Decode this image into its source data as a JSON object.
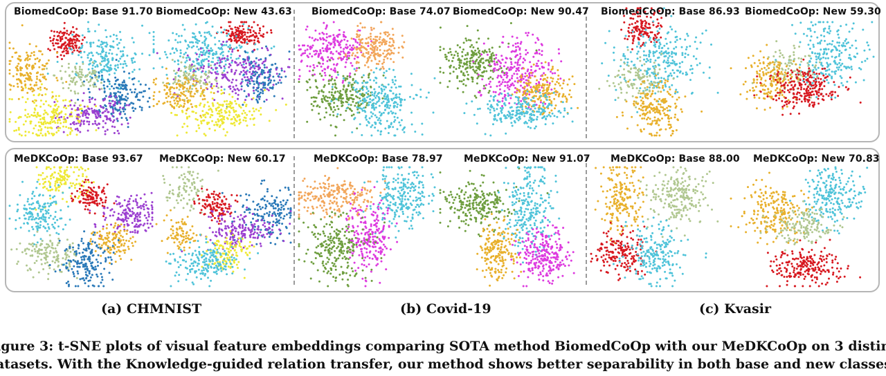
{
  "colors": {
    "red": "#d71920",
    "cyan": "#4fc3d9",
    "sage": "#b0c790",
    "purple": "#9b3fd0",
    "blue": "#2a79b8",
    "orange": "#e8b02c",
    "yellow": "#eee834",
    "magenta": "#dd3adf",
    "peach": "#f2a65a",
    "green": "#6e9e3f",
    "border": "#b5b5b5"
  },
  "plots": [
    {
      "title": "BiomedCoOp: Base 91.70",
      "dataset": "CHMNIST",
      "method": "BiomedCoOp",
      "split": "Base",
      "accuracy": 91.7
    },
    {
      "title": "BiomedCoOp: New 43.63",
      "dataset": "CHMNIST",
      "method": "BiomedCoOp",
      "split": "New",
      "accuracy": 43.63
    },
    {
      "title": "BiomedCoOp: Base 74.07",
      "dataset": "Covid-19",
      "method": "BiomedCoOp",
      "split": "Base",
      "accuracy": 74.07
    },
    {
      "title": "BiomedCoOp: New 90.47",
      "dataset": "Covid-19",
      "method": "BiomedCoOp",
      "split": "New",
      "accuracy": 90.47
    },
    {
      "title": "BiomedCoOp: Base 86.93",
      "dataset": "Kvasir",
      "method": "BiomedCoOp",
      "split": "Base",
      "accuracy": 86.93
    },
    {
      "title": "BiomedCoOp: New 59.30",
      "dataset": "Kvasir",
      "method": "BiomedCoOp",
      "split": "New",
      "accuracy": 59.3
    },
    {
      "title": "MeDKCoOp: Base 93.67",
      "dataset": "CHMNIST",
      "method": "MeDKCoOp",
      "split": "Base",
      "accuracy": 93.67
    },
    {
      "title": "MeDKCoOp: New 60.17",
      "dataset": "CHMNIST",
      "method": "MeDKCoOp",
      "split": "New",
      "accuracy": 60.17
    },
    {
      "title": "MeDKCoOp: Base 78.97",
      "dataset": "Covid-19",
      "method": "MeDKCoOp",
      "split": "Base",
      "accuracy": 78.97
    },
    {
      "title": "MeDKCoOp: New 91.07",
      "dataset": "Covid-19",
      "method": "MeDKCoOp",
      "split": "New",
      "accuracy": 91.07
    },
    {
      "title": "MeDKCoOp: Base 88.00",
      "dataset": "Kvasir",
      "method": "MeDKCoOp",
      "split": "Base",
      "accuracy": 88.0
    },
    {
      "title": "MeDKCoOp: New 70.83",
      "dataset": "Kvasir",
      "method": "MeDKCoOp",
      "split": "New",
      "accuracy": 70.83
    }
  ],
  "sublabels": {
    "a": "(a) CHMNIST",
    "b": "(b) Covid-19",
    "c": "(c) Kvasir"
  },
  "caption": {
    "line1": "igure 3: t-SNE plots of visual feature embeddings comparing SOTA method BiomedCoOp with our MeDKCoOp on 3 distinc",
    "line2": "atasets. With the Knowledge-guided relation transfer, our method shows better separability in both base and new classes."
  }
}
